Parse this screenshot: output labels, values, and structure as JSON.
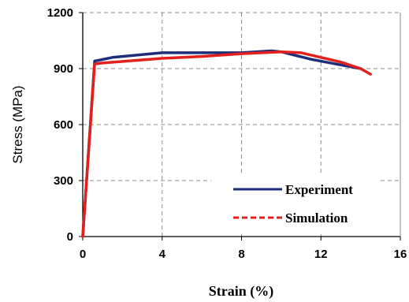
{
  "chart_data": {
    "type": "line",
    "title": "",
    "xlabel": "Strain (%)",
    "ylabel": "Stress (MPa)",
    "xlim": [
      0,
      16
    ],
    "ylim": [
      0,
      1200
    ],
    "xticks": [
      "0",
      "4",
      "8",
      "12",
      "16"
    ],
    "yticks": [
      "0",
      "300",
      "600",
      "900",
      "1200"
    ],
    "grid": true,
    "grid_style": "dashed",
    "legend_position": "bottom-right",
    "series": [
      {
        "name": "Experiment",
        "color": "#1f2e7a",
        "line_style": "solid",
        "x": [
          0,
          0.6,
          1.5,
          4,
          6,
          8,
          9.5,
          10,
          11.5,
          13,
          14
        ],
        "y": [
          0,
          940,
          960,
          985,
          985,
          985,
          995,
          990,
          950,
          920,
          900
        ]
      },
      {
        "name": "Simulation",
        "color": "#e3201b",
        "line_style": "dashed",
        "x": [
          0,
          0.6,
          1,
          4,
          6,
          8,
          10,
          11,
          12,
          13,
          14,
          14.5
        ],
        "y": [
          0,
          925,
          930,
          955,
          965,
          980,
          990,
          985,
          960,
          935,
          900,
          870
        ]
      }
    ]
  }
}
